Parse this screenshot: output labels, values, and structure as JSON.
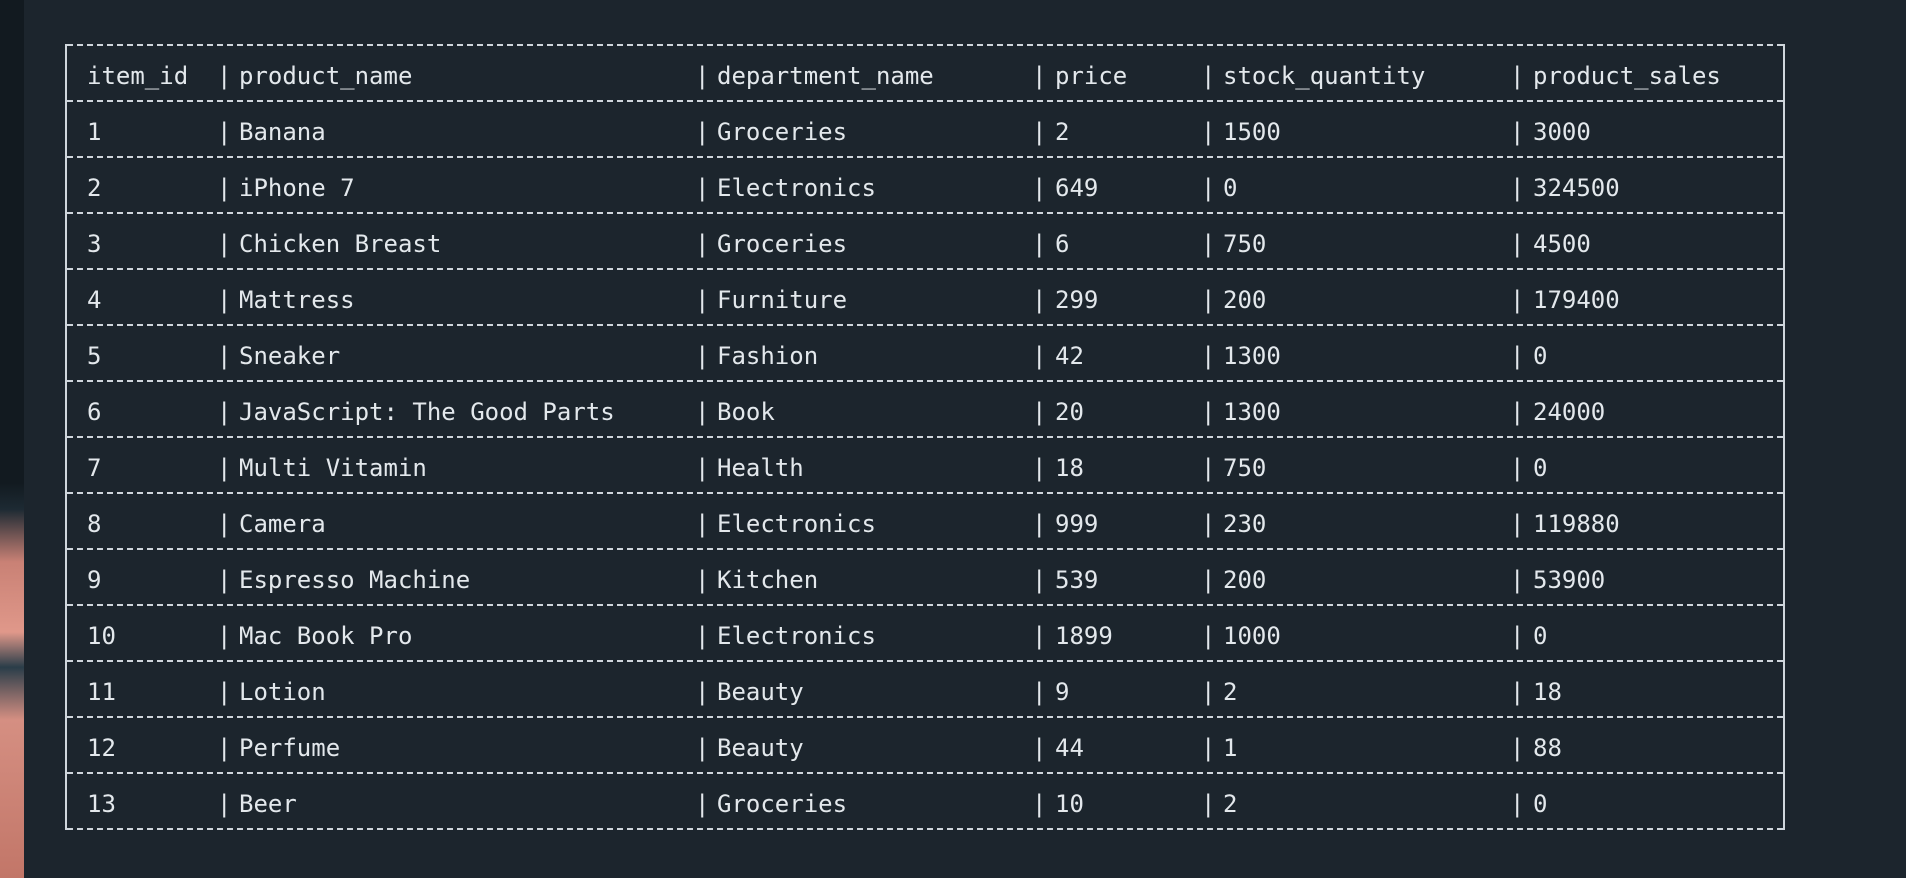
{
  "table": {
    "columns": [
      "item_id",
      "product_name",
      "department_name",
      "price",
      "stock_quantity",
      "product_sales"
    ],
    "rows": [
      [
        "1",
        "Banana",
        "Groceries",
        "2",
        "1500",
        "3000"
      ],
      [
        "2",
        "iPhone 7",
        "Electronics",
        "649",
        "0",
        "324500"
      ],
      [
        "3",
        "Chicken Breast",
        "Groceries",
        "6",
        "750",
        "4500"
      ],
      [
        "4",
        "Mattress",
        "Furniture",
        "299",
        "200",
        "179400"
      ],
      [
        "5",
        "Sneaker",
        "Fashion",
        "42",
        "1300",
        "0"
      ],
      [
        "6",
        "JavaScript: The Good Parts",
        "Book",
        "20",
        "1300",
        "24000"
      ],
      [
        "7",
        "Multi Vitamin",
        "Health",
        "18",
        "750",
        "0"
      ],
      [
        "8",
        "Camera",
        "Electronics",
        "999",
        "230",
        "119880"
      ],
      [
        "9",
        "Espresso Machine",
        "Kitchen",
        "539",
        "200",
        "53900"
      ],
      [
        "10",
        "Mac Book Pro",
        "Electronics",
        "1899",
        "1000",
        "0"
      ],
      [
        "11",
        "Lotion",
        "Beauty",
        "9",
        "2",
        "18"
      ],
      [
        "12",
        "Perfume",
        "Beauty",
        "44",
        "1",
        "88"
      ],
      [
        "13",
        "Beer",
        "Groceries",
        "10",
        "2",
        "0"
      ]
    ]
  },
  "colors": {
    "background": "#1c252d",
    "text": "#e3e8ec",
    "border": "#cfd6dc"
  }
}
